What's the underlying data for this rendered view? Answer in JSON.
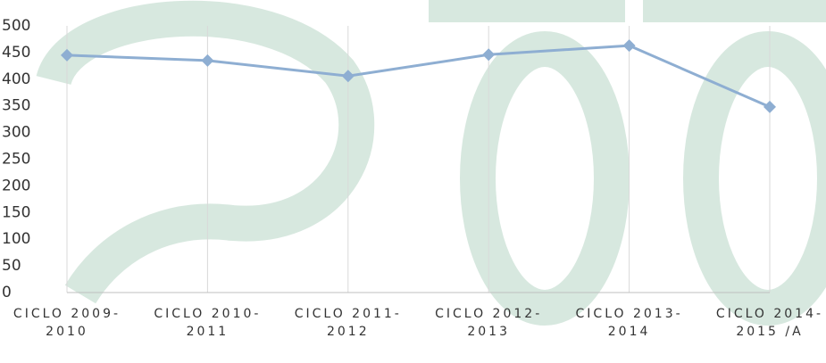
{
  "chart_data": {
    "type": "line",
    "categories": [
      "CICLO 2009-2010",
      "CICLO 2010-2011",
      "CICLO 2011-2012",
      "CICLO 2012-2013",
      "CICLO 2013-2014",
      "CICLO 2014-2015 /A"
    ],
    "series": [
      {
        "color": "#8eaed2",
        "values": [
          445,
          435,
          406,
          446,
          463,
          348
        ]
      }
    ],
    "ylim": [
      0,
      500
    ],
    "yticks": [
      0,
      50,
      100,
      150,
      200,
      250,
      300,
      350,
      400,
      450,
      500
    ],
    "grid": "x"
  }
}
